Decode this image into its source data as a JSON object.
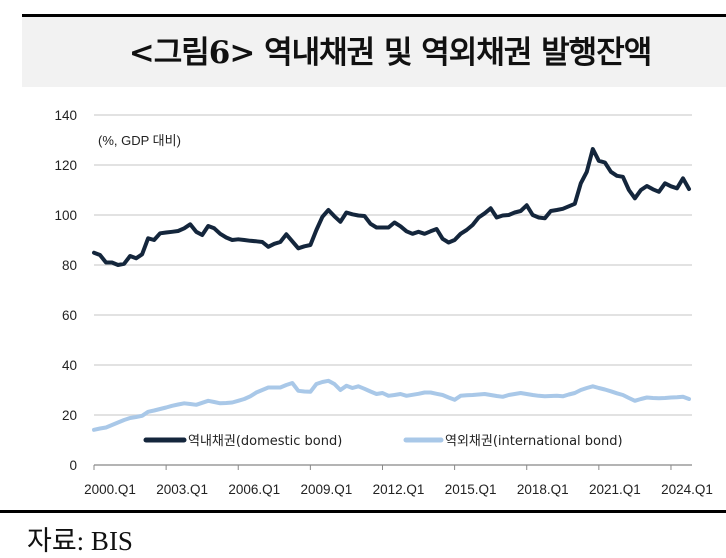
{
  "title": "<그림6> 역내채권 및 역외채권 발행잔액",
  "source": "자료: BIS",
  "chart_data": {
    "type": "line",
    "title": "<그림6> 역내채권 및 역외채권 발행잔액",
    "unit_label": "(%, GDP 대비)",
    "xlabel": "",
    "ylabel": "",
    "ylim": [
      0,
      140
    ],
    "yticks": [
      "0",
      "20",
      "40",
      "60",
      "80",
      "100",
      "120",
      "140"
    ],
    "x_start": "2000.Q1",
    "x_end": "2024.Q4",
    "xticks": [
      "2000.Q1",
      "2003.Q1",
      "2006.Q1",
      "2009.Q1",
      "2012.Q1",
      "2015.Q1",
      "2018.Q1",
      "2021.Q1",
      "2024.Q1"
    ],
    "grid": true,
    "legend_position": "bottom-inside",
    "series": [
      {
        "name": "역내채권(domestic bond)",
        "color": "#14263c",
        "values": [
          84.9,
          84,
          81,
          81,
          80,
          80.5,
          83.6,
          82.7,
          84.3,
          90.7,
          90,
          92.7,
          93,
          93.3,
          93.6,
          94.7,
          96.3,
          93.3,
          92,
          95.6,
          94.7,
          92.5,
          91,
          90,
          90.3,
          90,
          89.7,
          89.5,
          89.2,
          87.3,
          88.5,
          89.2,
          92.3,
          89.5,
          86.7,
          87.5,
          88,
          94,
          99.3,
          102,
          99.5,
          97.3,
          101,
          100.3,
          99.8,
          99.6,
          96.5,
          95,
          95,
          95,
          97,
          95.5,
          93.5,
          92.5,
          93.3,
          92.5,
          93.5,
          94.4,
          90.5,
          89,
          90,
          92.5,
          94,
          96,
          99,
          100.7,
          102.7,
          99,
          99.8,
          100,
          101,
          101.6,
          103.9,
          100,
          99,
          98.7,
          101.6,
          102,
          102.5,
          103.5,
          104.5,
          112.7,
          117.3,
          126.4,
          121.7,
          121,
          117.3,
          115.7,
          115.3,
          110,
          106.7,
          110,
          111.6,
          110.3,
          109.3,
          112.7,
          111.5,
          110.7,
          114.7,
          110.4
        ]
      },
      {
        "name": "역외채권(international bond)",
        "color": "#a9c8e8",
        "values": [
          14.1,
          14.6,
          15,
          16,
          17,
          18,
          18.8,
          19.2,
          19.7,
          21.3,
          21.8,
          22.4,
          23,
          23.7,
          24.2,
          24.7,
          24.4,
          24.1,
          24.9,
          25.7,
          25.2,
          24.7,
          24.8,
          25,
          25.7,
          26.4,
          27.5,
          29,
          30,
          31,
          31,
          31,
          32,
          32.8,
          29.7,
          29.4,
          29.3,
          32.4,
          33.2,
          33.7,
          32.4,
          30,
          31.7,
          30.8,
          31.5,
          30.5,
          29.4,
          28.4,
          28.8,
          27.7,
          28,
          28.4,
          27.7,
          28.1,
          28.5,
          29,
          29,
          28.5,
          28,
          27,
          26.1,
          27.7,
          27.9,
          28,
          28.2,
          28.4,
          28,
          27.6,
          27.3,
          28,
          28.4,
          28.8,
          28.4,
          28,
          27.7,
          27.5,
          27.6,
          27.7,
          27.5,
          28.2,
          28.8,
          30,
          30.8,
          31.5,
          30.8,
          30.2,
          29.5,
          28.7,
          28,
          26.8,
          25.7,
          26.4,
          27,
          26.8,
          26.7,
          26.8,
          27,
          27.1,
          27.3,
          26.4
        ]
      }
    ]
  }
}
